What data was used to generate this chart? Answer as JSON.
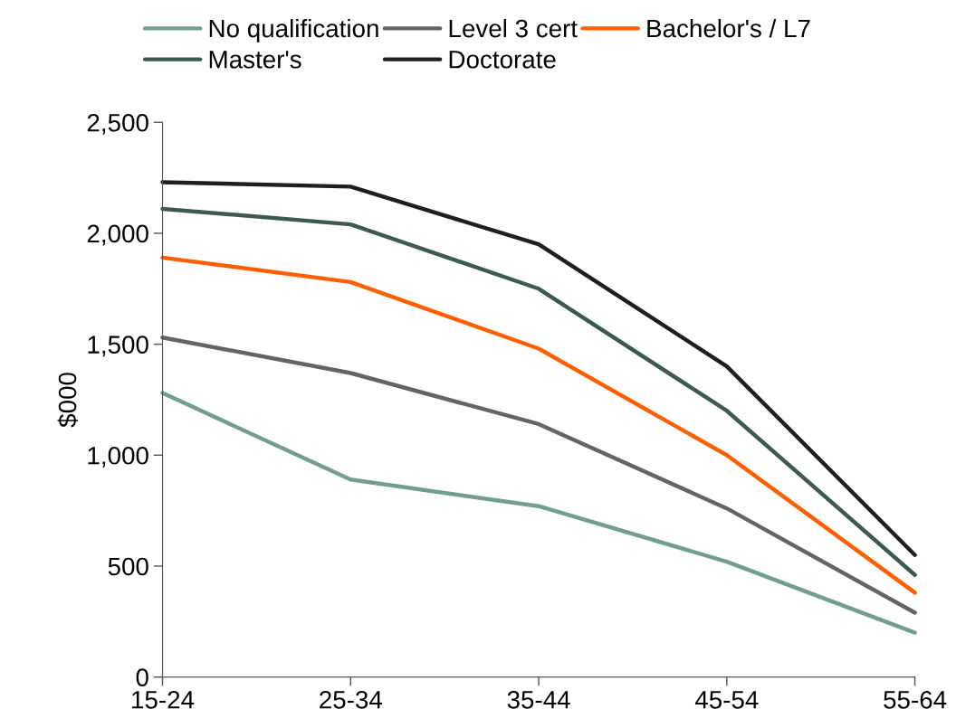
{
  "chart_data": {
    "type": "line",
    "ylabel": "$000",
    "categories": [
      "15-24",
      "25-34",
      "35-44",
      "45-54",
      "55-64"
    ],
    "series": [
      {
        "name": "No qualification",
        "color": "#739e8c",
        "values": [
          1280,
          890,
          770,
          520,
          200
        ]
      },
      {
        "name": "Level 3 cert",
        "color": "#646464",
        "values": [
          1530,
          1370,
          1140,
          760,
          290
        ]
      },
      {
        "name": "Bachelor's / L7",
        "color": "#ff5f00",
        "values": [
          1890,
          1780,
          1480,
          1000,
          380
        ]
      },
      {
        "name": "Master's",
        "color": "#3d5a50",
        "values": [
          2110,
          2040,
          1750,
          1200,
          460
        ]
      },
      {
        "name": "Doctorate",
        "color": "#1f1f1f",
        "values": [
          2230,
          2210,
          1950,
          1400,
          550
        ]
      }
    ],
    "ylim": [
      0,
      2500
    ],
    "yticks": [
      {
        "value": 0,
        "label": "0"
      },
      {
        "value": 500,
        "label": "500"
      },
      {
        "value": 1000,
        "label": "1,000"
      },
      {
        "value": 1500,
        "label": "1,500"
      },
      {
        "value": 2000,
        "label": "2,000"
      },
      {
        "value": 2500,
        "label": "2,500"
      }
    ],
    "grid": false,
    "legend": "top",
    "marker": "none",
    "line_style": "solid"
  }
}
